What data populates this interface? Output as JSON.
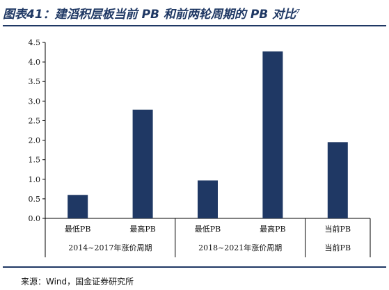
{
  "title": {
    "prefix": "图表41：",
    "text": "建滔积层板当前 PB 和前两轮周期的 PB 对比",
    "superscript": "7"
  },
  "source": "来源：Wind，国金证券研究所",
  "colors": {
    "bar": "#1f3864",
    "title": "#1f3864",
    "axis": "#000000"
  },
  "chart_data": {
    "type": "bar",
    "title": "",
    "xlabel": "",
    "ylabel": "",
    "ylim": [
      0,
      4.5
    ],
    "yticks": [
      "0.0",
      "0.5",
      "1.0",
      "1.5",
      "2.0",
      "2.5",
      "3.0",
      "3.5",
      "4.0",
      "4.5"
    ],
    "grid": false,
    "legend": "none",
    "categories": [
      "最低PB",
      "最高PB",
      "最低PB",
      "最高PB",
      "当前PB"
    ],
    "values": [
      0.6,
      2.78,
      0.97,
      4.27,
      1.95
    ],
    "groups": [
      {
        "label": "2014~2017年涨价周期",
        "span": 2
      },
      {
        "label": "2018~2021年涨价周期",
        "span": 2
      },
      {
        "label": "当前PB",
        "span": 1
      }
    ]
  }
}
